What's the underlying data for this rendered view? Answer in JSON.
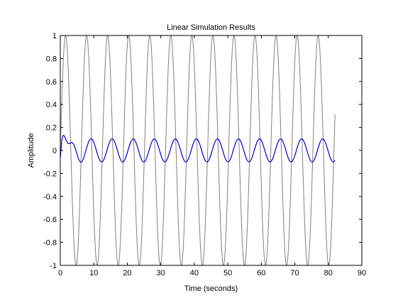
{
  "chart_data": {
    "type": "line",
    "title": "Linear Simulation Results",
    "xlabel": "Time (seconds)",
    "ylabel": "Amplitude",
    "xlim": [
      0,
      90
    ],
    "ylim": [
      -1,
      1
    ],
    "xticks": [
      0,
      10,
      20,
      30,
      40,
      50,
      60,
      70,
      80,
      90
    ],
    "xtick_labels": [
      "0",
      "10",
      "20",
      "30",
      "40",
      "50",
      "60",
      "70",
      "80",
      "90"
    ],
    "yticks": [
      -1,
      -0.8,
      -0.6,
      -0.4,
      -0.2,
      0,
      0.2,
      0.4,
      0.6,
      0.8,
      1
    ],
    "ytick_labels": [
      "-1",
      "-0.8",
      "-0.6",
      "-0.4",
      "-0.2",
      "0",
      "0.2",
      "0.4",
      "0.6",
      "0.8",
      "1"
    ],
    "grid": false,
    "series": [
      {
        "role": "input",
        "color": "#808080",
        "t_end": 82,
        "period": 6.28,
        "amplitude": 1,
        "offset": 0,
        "peaks": [
          1.57,
          7.85,
          14.14,
          20.42,
          26.7,
          32.99,
          39.27,
          45.55,
          51.84,
          58.12,
          64.4,
          70.69,
          76.97
        ],
        "end_value": 0.24
      },
      {
        "role": "output",
        "color": "#0000cc",
        "t_end": 82,
        "initial_peak": {
          "x": 1.0,
          "y": 0.19
        },
        "first_trough": {
          "x": 4.3,
          "y": -0.11
        },
        "steady_amplitude": 0.1,
        "period": 6.28,
        "end_value": 0.08
      }
    ]
  }
}
